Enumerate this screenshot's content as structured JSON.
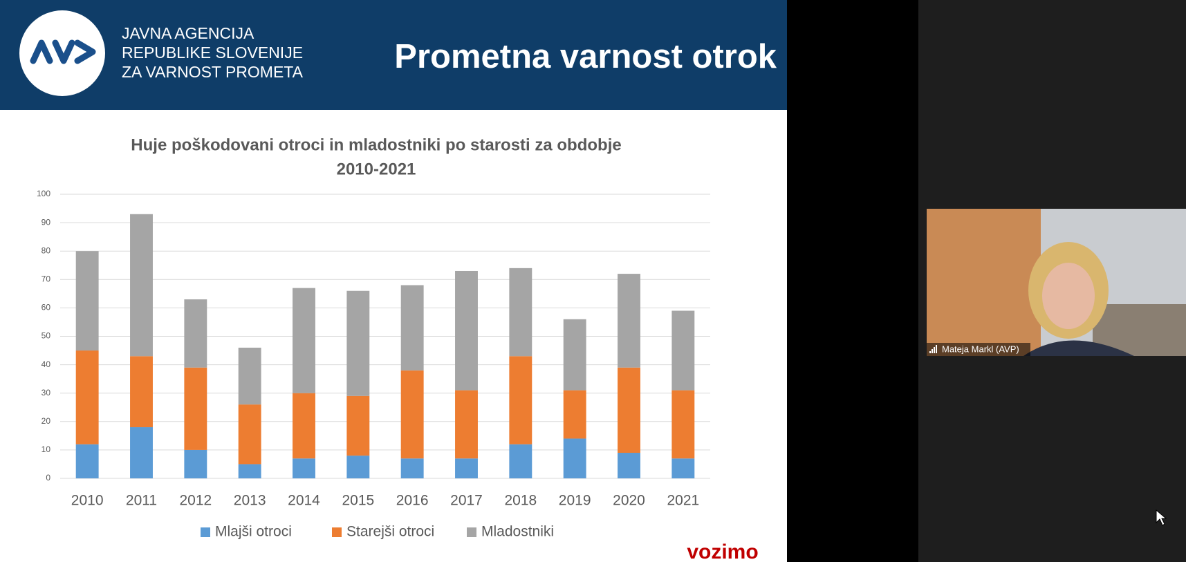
{
  "header": {
    "logo_lines": [
      "JAVNA AGENCIJA",
      "REPUBLIKE SLOVENIJE",
      "ZA VARNOST PROMETA"
    ],
    "title": "Prometna varnost otrok"
  },
  "chart_data": {
    "type": "stacked_bar",
    "title": [
      "Huje poškodovani otroci in mladostniki po starosti za obdobje",
      "2010-2021"
    ],
    "categories": [
      "2010",
      "2011",
      "2012",
      "2013",
      "2014",
      "2015",
      "2016",
      "2017",
      "2018",
      "2019",
      "2020",
      "2021"
    ],
    "series": [
      {
        "name": "Mlajši otroci",
        "color": "#5b9bd5",
        "values": [
          12,
          18,
          10,
          5,
          7,
          8,
          7,
          7,
          12,
          14,
          9,
          7
        ]
      },
      {
        "name": "Starejši otroci",
        "color": "#ed7d31",
        "values": [
          33,
          25,
          29,
          21,
          23,
          21,
          31,
          24,
          31,
          17,
          30,
          24
        ]
      },
      {
        "name": "Mladostniki",
        "color": "#a5a5a5",
        "values": [
          35,
          50,
          24,
          20,
          37,
          37,
          30,
          42,
          31,
          25,
          33,
          28
        ]
      }
    ],
    "ylim": [
      0,
      100
    ],
    "yticks": [
      0,
      10,
      20,
      30,
      40,
      50,
      60,
      70,
      80,
      90,
      100
    ],
    "grid": true,
    "legend": "bottom"
  },
  "participant": {
    "name": "Mateja Markl (AVP)"
  },
  "footer_logo": "vozimo"
}
